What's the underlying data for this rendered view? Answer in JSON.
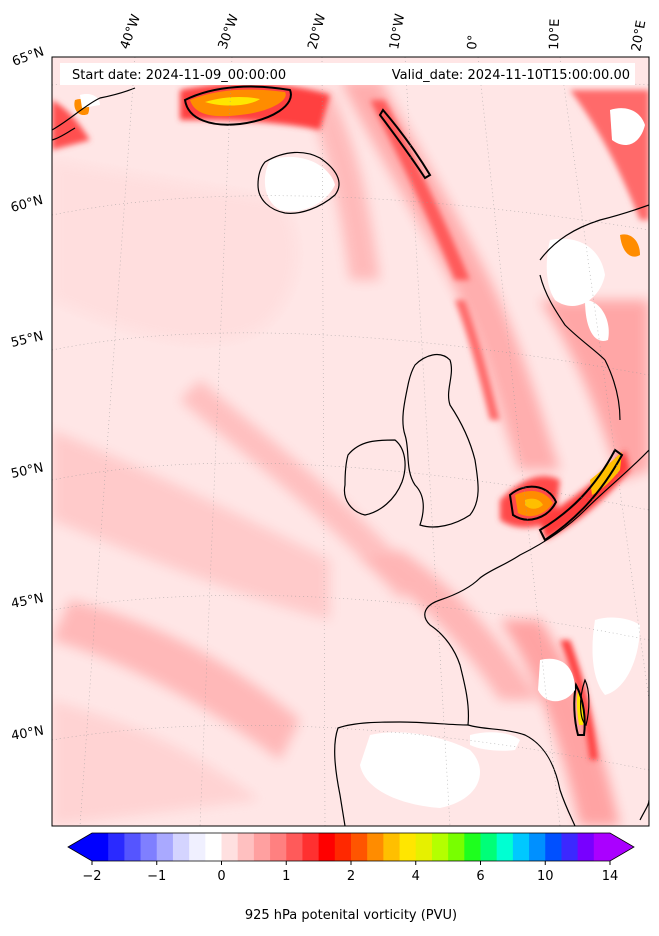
{
  "header": {
    "start_date": "Start date: 2024-11-09_00:00:00",
    "valid_date": "Valid_date: 2024-11-10T15:00:00.00"
  },
  "longitude_labels": [
    "40°W",
    "30°W",
    "20°W",
    "10°W",
    "0°",
    "10°E",
    "20°E"
  ],
  "latitude_labels": [
    "65°N",
    "60°N",
    "55°N",
    "50°N",
    "45°N",
    "40°N"
  ],
  "colorbar": {
    "label": "925 hPa potenital vorticity (PVU)",
    "ticks": [
      "−2",
      "−1",
      "0",
      "1",
      "2",
      "4",
      "6",
      "10",
      "14"
    ],
    "colors": [
      "#0000ff",
      "#2a2aff",
      "#5555ff",
      "#7f7fff",
      "#a9a9ff",
      "#d4d4ff",
      "#f0f0ff",
      "#ffffff",
      "#ffe0e0",
      "#ffc0c0",
      "#ffa0a0",
      "#ff8080",
      "#ff5a5a",
      "#ff3030",
      "#ff0000",
      "#ff2800",
      "#ff5500",
      "#ff8c00",
      "#ffbf00",
      "#ffe600",
      "#e6f000",
      "#b4ff00",
      "#78ff00",
      "#1eff1e",
      "#00ff78",
      "#00ffd2",
      "#00c8ff",
      "#0090ff",
      "#0050ff",
      "#3c28ff",
      "#7800ff",
      "#aa00ff"
    ]
  }
}
